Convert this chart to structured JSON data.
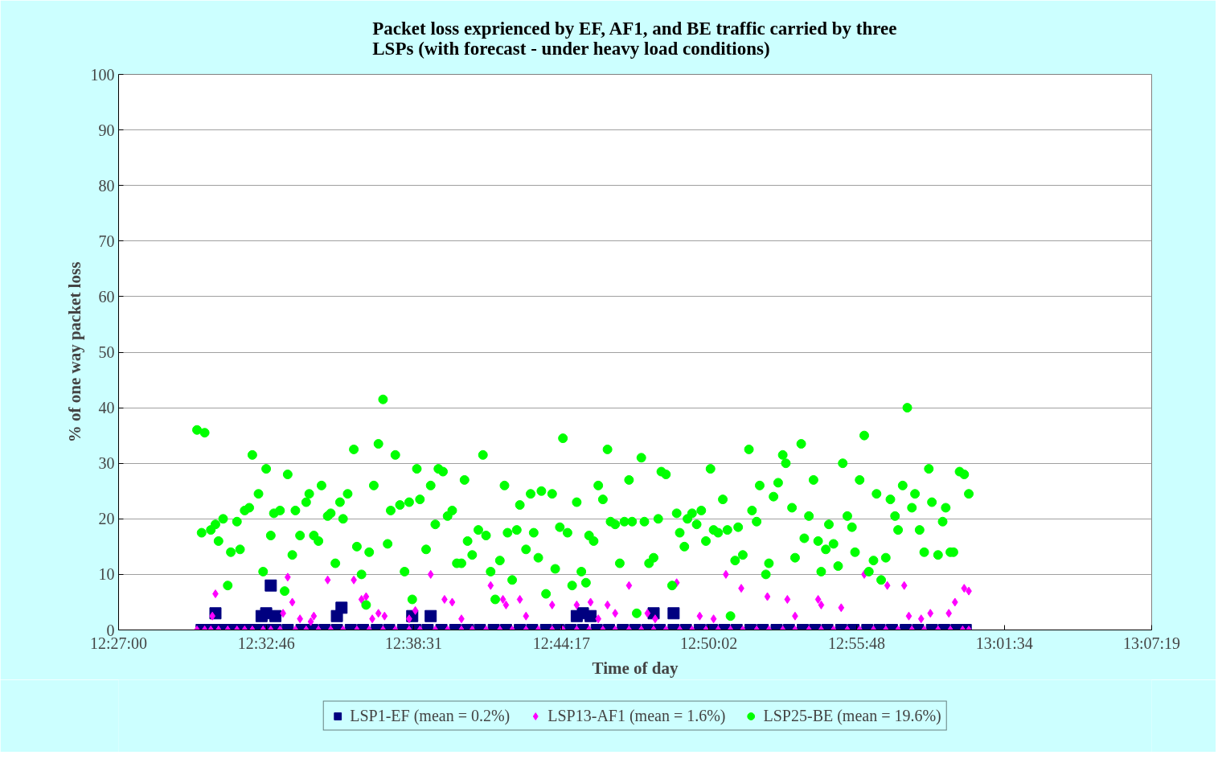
{
  "chart_data": {
    "type": "scatter",
    "title": "Packet loss exprienced by EF, AF1, and BE traffic carried by three LSPs (with forecast - under heavy load conditions)",
    "xlabel": "Time of day",
    "ylabel": "% of one way packet loss",
    "xlim": [
      12.45,
      13.121944
    ],
    "xticks": [
      {
        "value": 12.45,
        "label": "12:27:00"
      },
      {
        "value": 12.546111,
        "label": "12:32:46"
      },
      {
        "value": 12.641944,
        "label": "12:38:31"
      },
      {
        "value": 12.738056,
        "label": "12:44:17"
      },
      {
        "value": 12.833889,
        "label": "12:50:02"
      },
      {
        "value": 12.93,
        "label": "12:55:48"
      },
      {
        "value": 13.026111,
        "label": "13:01:34"
      },
      {
        "value": 13.121944,
        "label": "13:07:19"
      }
    ],
    "ylim": [
      0,
      100
    ],
    "yticks": [
      0,
      10,
      20,
      30,
      40,
      50,
      60,
      70,
      80,
      90,
      100
    ],
    "grid": "y",
    "legend": "bottom",
    "series": [
      {
        "name": "LSP1-EF (mean = 0.2%)",
        "color": "#000080",
        "marker": "square",
        "x": [
          12.504,
          12.508,
          12.513,
          12.518,
          12.524,
          12.53,
          12.535,
          12.541,
          12.547,
          12.552,
          12.56,
          12.569,
          12.576,
          12.584,
          12.592,
          12.601,
          12.609,
          12.618,
          12.626,
          12.635,
          12.643,
          12.651,
          12.66,
          12.669,
          12.677,
          12.685,
          12.694,
          12.702,
          12.711,
          12.719,
          12.728,
          12.736,
          12.744,
          12.752,
          12.761,
          12.769,
          12.778,
          12.786,
          12.794,
          12.802,
          12.811,
          12.819,
          12.828,
          12.836,
          12.844,
          12.852,
          12.861,
          12.869,
          12.878,
          12.886,
          12.895,
          12.903,
          12.911,
          12.92,
          12.928,
          12.937,
          12.945,
          12.953,
          12.962,
          12.97,
          12.979,
          12.987,
          12.995,
          13.001,
          12.513,
          12.543,
          12.546,
          12.549,
          12.552,
          12.592,
          12.595,
          12.641,
          12.653,
          12.748,
          12.752,
          12.757,
          12.798,
          12.811
        ],
        "values": [
          0,
          0,
          0,
          0,
          0,
          0,
          0,
          0,
          0,
          0,
          0,
          0,
          0,
          0,
          0,
          0,
          0,
          0,
          0,
          0,
          0,
          0,
          0,
          0,
          0,
          0,
          0,
          0,
          0,
          0,
          0,
          0,
          0,
          0,
          0,
          0,
          0,
          0,
          0,
          0,
          0,
          0,
          0,
          0,
          0,
          0,
          0,
          0,
          0,
          0,
          0,
          0,
          0,
          0,
          0,
          0,
          0,
          0,
          0,
          0,
          0,
          0,
          0,
          0,
          3,
          2.5,
          3,
          8,
          2.5,
          2.5,
          4,
          2.5,
          2.5,
          2.5,
          3,
          2.5,
          3,
          3
        ]
      },
      {
        "name": "LSP13-AF1 (mean = 1.6%)",
        "color": "#ff00ff",
        "marker": "diamond",
        "x": [
          12.501,
          12.506,
          12.51,
          12.515,
          12.521,
          12.527,
          12.532,
          12.537,
          12.544,
          12.549,
          12.555,
          12.565,
          12.572,
          12.58,
          12.588,
          12.596,
          12.605,
          12.613,
          12.622,
          12.63,
          12.639,
          12.646,
          12.656,
          12.664,
          12.673,
          12.68,
          12.689,
          12.698,
          12.706,
          12.715,
          12.723,
          12.732,
          12.739,
          12.748,
          12.756,
          12.765,
          12.773,
          12.782,
          12.79,
          12.798,
          12.806,
          12.815,
          12.823,
          12.832,
          12.84,
          12.848,
          12.856,
          12.865,
          12.873,
          12.882,
          12.89,
          12.899,
          12.907,
          12.915,
          12.924,
          12.932,
          12.941,
          12.949,
          12.957,
          12.966,
          12.974,
          12.983,
          12.991,
          12.999,
          13.003,
          12.511,
          12.513,
          12.557,
          12.56,
          12.563,
          12.568,
          12.575,
          12.577,
          12.586,
          12.603,
          12.608,
          12.611,
          12.615,
          12.619,
          12.623,
          12.639,
          12.643,
          12.653,
          12.662,
          12.667,
          12.673,
          12.692,
          12.7,
          12.702,
          12.711,
          12.715,
          12.732,
          12.748,
          12.757,
          12.762,
          12.768,
          12.773,
          12.782,
          12.794,
          12.799,
          12.813,
          12.828,
          12.837,
          12.845,
          12.855,
          12.872,
          12.885,
          12.89,
          12.905,
          12.907,
          12.92,
          12.935,
          12.95,
          12.961,
          12.964,
          12.972,
          12.978,
          12.99,
          12.994,
          13.0,
          13.003
        ],
        "values": [
          0,
          0,
          0,
          0,
          0,
          0,
          0,
          0,
          0,
          0,
          0,
          0,
          0,
          0,
          0,
          0,
          0,
          0,
          0,
          0,
          0,
          0,
          0,
          0,
          0,
          0,
          0,
          0,
          0,
          0,
          0,
          0,
          0,
          0,
          0,
          0,
          0,
          0,
          0,
          0,
          0,
          0,
          0,
          0,
          0,
          0,
          0,
          0,
          0,
          0,
          0,
          0,
          0,
          0,
          0,
          0,
          0,
          0,
          0,
          0,
          0,
          0,
          0,
          0,
          0,
          2.5,
          6.5,
          3,
          9.5,
          5,
          2,
          1.5,
          2.5,
          9,
          9,
          5.5,
          6,
          2,
          3,
          2.5,
          2,
          3.5,
          10,
          5.5,
          5,
          2,
          8,
          5.5,
          4.5,
          5.5,
          2.5,
          4.5,
          4.5,
          5,
          2,
          4.5,
          3,
          8,
          3,
          2,
          8.5,
          2.5,
          2,
          10,
          7.5,
          6,
          5.5,
          2.5,
          5.5,
          4.5,
          4,
          10,
          8,
          8,
          2.5,
          2,
          3,
          3,
          5,
          7.5,
          7
        ]
      },
      {
        "name": "LSP25-BE (mean = 19.6%)",
        "color": "#00ff00",
        "marker": "circle",
        "x": [
          12.501,
          12.506,
          12.504,
          12.51,
          12.513,
          12.515,
          12.518,
          12.521,
          12.523,
          12.527,
          12.529,
          12.532,
          12.535,
          12.537,
          12.541,
          12.544,
          12.546,
          12.549,
          12.551,
          12.555,
          12.558,
          12.56,
          12.563,
          12.565,
          12.568,
          12.572,
          12.574,
          12.577,
          12.58,
          12.582,
          12.586,
          12.588,
          12.591,
          12.594,
          12.596,
          12.599,
          12.603,
          12.605,
          12.608,
          12.611,
          12.613,
          12.616,
          12.619,
          12.622,
          12.625,
          12.627,
          12.63,
          12.633,
          12.636,
          12.639,
          12.641,
          12.644,
          12.646,
          12.65,
          12.653,
          12.656,
          12.658,
          12.661,
          12.664,
          12.667,
          12.67,
          12.673,
          12.675,
          12.677,
          12.68,
          12.684,
          12.687,
          12.689,
          12.692,
          12.695,
          12.698,
          12.701,
          12.703,
          12.706,
          12.709,
          12.711,
          12.715,
          12.718,
          12.72,
          12.723,
          12.725,
          12.728,
          12.732,
          12.734,
          12.737,
          12.739,
          12.742,
          12.745,
          12.748,
          12.751,
          12.754,
          12.756,
          12.759,
          12.762,
          12.765,
          12.768,
          12.77,
          12.773,
          12.776,
          12.779,
          12.782,
          12.784,
          12.787,
          12.79,
          12.792,
          12.795,
          12.798,
          12.801,
          12.803,
          12.806,
          12.81,
          12.813,
          12.815,
          12.818,
          12.82,
          12.823,
          12.826,
          12.829,
          12.832,
          12.835,
          12.837,
          12.84,
          12.843,
          12.846,
          12.848,
          12.851,
          12.853,
          12.856,
          12.86,
          12.862,
          12.865,
          12.867,
          12.871,
          12.873,
          12.876,
          12.879,
          12.882,
          12.884,
          12.888,
          12.89,
          12.894,
          12.896,
          12.899,
          12.902,
          12.905,
          12.907,
          12.91,
          12.912,
          12.915,
          12.918,
          12.921,
          12.924,
          12.927,
          12.929,
          12.932,
          12.935,
          12.938,
          12.941,
          12.943,
          12.946,
          12.949,
          12.952,
          12.955,
          12.957,
          12.96,
          12.963,
          12.966,
          12.968,
          12.971,
          12.974,
          12.977,
          12.979,
          12.983,
          12.986,
          12.988,
          12.991,
          12.993,
          12.997,
          13.0,
          13.003
        ],
        "values": [
          36,
          35.5,
          17.5,
          18,
          19,
          16,
          20,
          8,
          14,
          19.5,
          14.5,
          21.5,
          22,
          31.5,
          24.5,
          10.5,
          29,
          17,
          21,
          21.5,
          7,
          28,
          13.5,
          21.5,
          17,
          23,
          24.5,
          17,
          16,
          26,
          20.5,
          21,
          12,
          23,
          20,
          24.5,
          32.5,
          15,
          10,
          4.5,
          14,
          26,
          33.5,
          41.5,
          15.5,
          21.5,
          31.5,
          22.5,
          10.5,
          23,
          5.5,
          29,
          23.5,
          14.5,
          26,
          19,
          29,
          28.5,
          20.5,
          21.5,
          12,
          12,
          27,
          16,
          13.5,
          18,
          31.5,
          17,
          10.5,
          5.5,
          12.5,
          26,
          17.5,
          9,
          18,
          22.5,
          14.5,
          24.5,
          17.5,
          13,
          25,
          6.5,
          24.5,
          11,
          18.5,
          34.5,
          17.5,
          8,
          23,
          10.5,
          8.5,
          17,
          16,
          26,
          23.5,
          32.5,
          19.5,
          19,
          12,
          19.5,
          27,
          19.5,
          3,
          31,
          19.5,
          12,
          13,
          20,
          28.5,
          28,
          8,
          21,
          17.5,
          15,
          20,
          21,
          19,
          21.5,
          16,
          29,
          18,
          17.5,
          23.5,
          18,
          2.5,
          12.5,
          18.5,
          13.5,
          32.5,
          21.5,
          19.5,
          26,
          10,
          12,
          24,
          26.5,
          31.5,
          30,
          22,
          13,
          33.5,
          16.5,
          20.5,
          27,
          16,
          10.5,
          14.5,
          19,
          15.5,
          11.5,
          30,
          20.5,
          18.5,
          14,
          27,
          35,
          10.5,
          12.5,
          24.5,
          9,
          13,
          23.5,
          20.5,
          18,
          26,
          40,
          22,
          24.5,
          18,
          14,
          29,
          23,
          13.5,
          19.5,
          22,
          14,
          14,
          28.5,
          28,
          24.5
        ]
      }
    ]
  }
}
